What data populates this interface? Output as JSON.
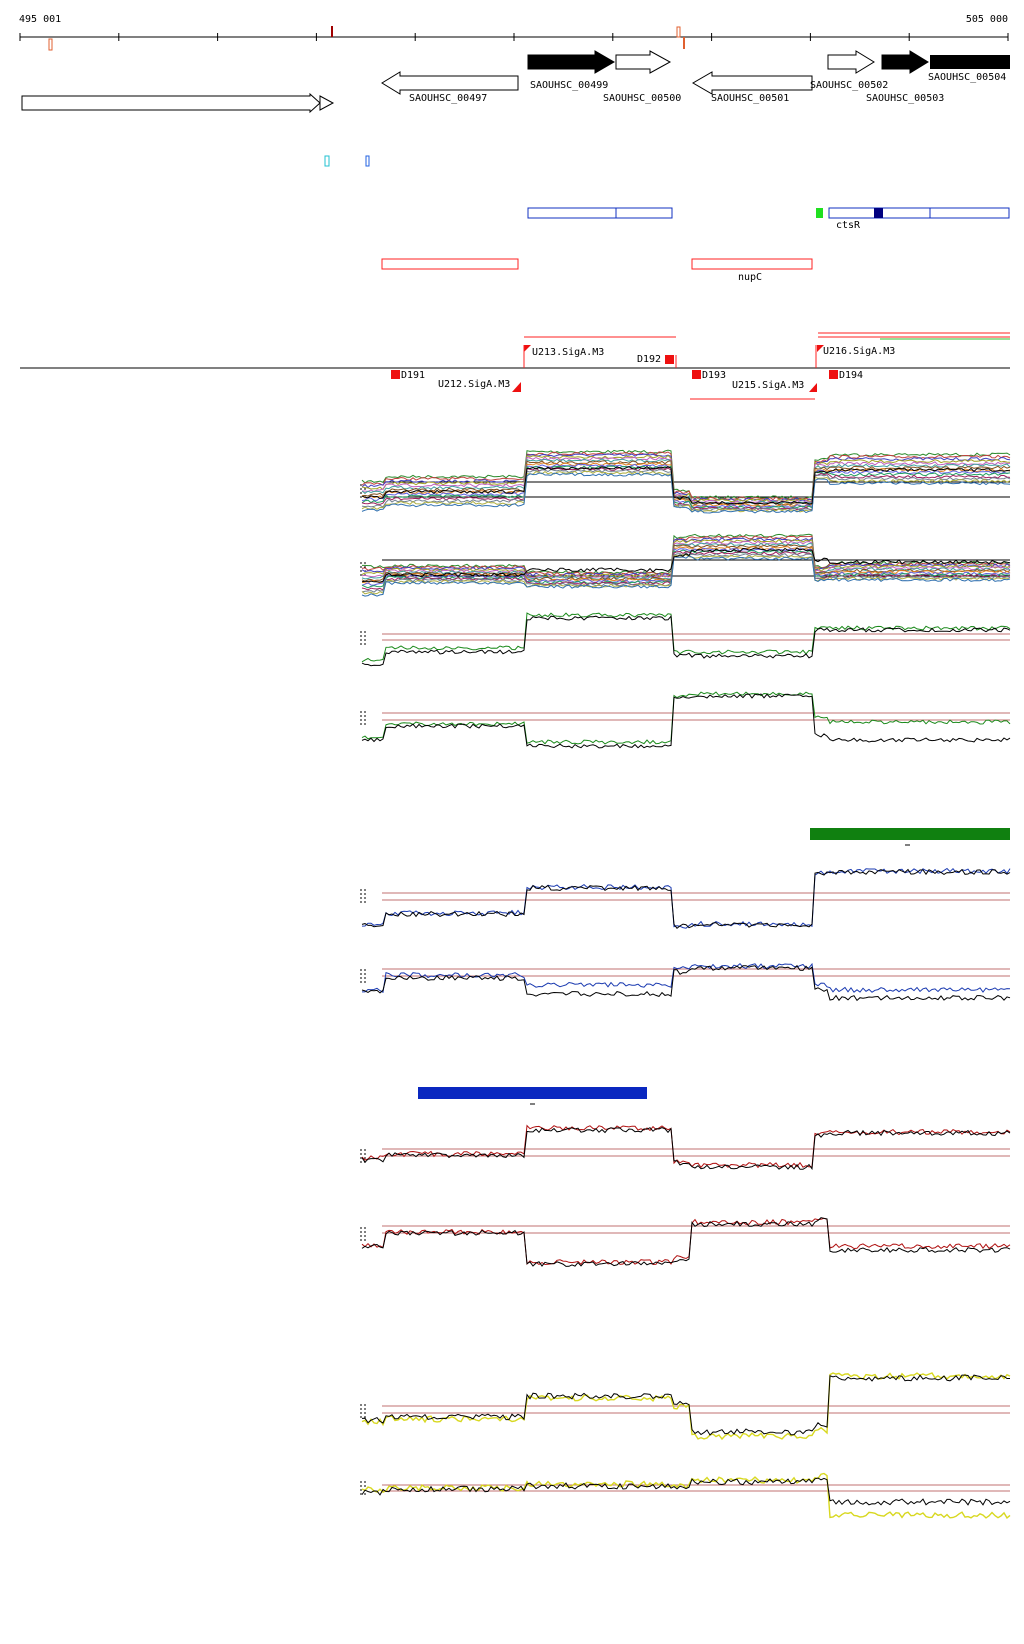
{
  "axis": {
    "start_label": "495 001",
    "end_label": "505 000"
  },
  "genes": [
    {
      "label": "SAOUHSC_00497"
    },
    {
      "label": "SAOUHSC_00499"
    },
    {
      "label": "SAOUHSC_00500"
    },
    {
      "label": "SAOUHSC_00501"
    },
    {
      "label": "SAOUHSC_00502"
    },
    {
      "label": "SAOUHSC_00503"
    },
    {
      "label": "SAOUHSC_00504"
    }
  ],
  "features": {
    "ctsR_label": "ctsR",
    "nupC_label": "nupC"
  },
  "regions": [
    {
      "label": "D191"
    },
    {
      "label": "U212.SigA.M3"
    },
    {
      "label": "U213.SigA.M3"
    },
    {
      "label": "D192"
    },
    {
      "label": "D193"
    },
    {
      "label": "U215.SigA.M3"
    },
    {
      "label": "D194"
    },
    {
      "label": "U216.SigA.M3"
    }
  ],
  "colors": {
    "gene_solid": "#000000",
    "blue_feature": "#1030c0",
    "red_feature": "#ff2020",
    "green_bar": "#108010",
    "blue_bar": "#0a28c0",
    "track_blue": "#1a3ab0",
    "track_green": "#1b8a1b",
    "track_red": "#b01010",
    "track_yellow": "#d8d820",
    "ref_line": "#c07070"
  }
}
